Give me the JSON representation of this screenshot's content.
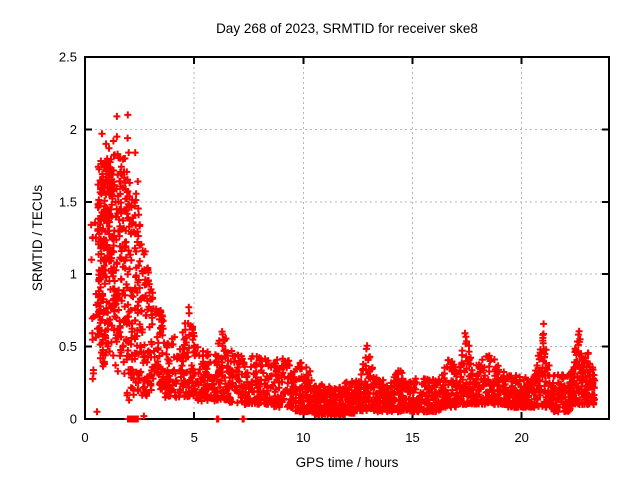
{
  "chart_data": {
    "type": "scatter",
    "title": "Day 268 of 2023, SRMTID for receiver ske8",
    "xlabel": "GPS time / hours",
    "ylabel": "SRMTID / TECUs",
    "xlim": [
      0,
      24
    ],
    "ylim": [
      0,
      2.5
    ],
    "xtick_values": [
      0,
      5,
      10,
      15,
      20
    ],
    "xtick_labels": [
      "0",
      "5",
      "10",
      "15",
      "20"
    ],
    "ytick_values": [
      0,
      0.5,
      1,
      1.5,
      2,
      2.5
    ],
    "ytick_labels": [
      "0",
      "0.5",
      "1",
      "1.5",
      "2",
      "2.5"
    ],
    "grid": {
      "show": true,
      "style": "dashed",
      "color": "#b4b4b4"
    },
    "legend": "none",
    "marker": {
      "shape": "plus",
      "color": "#ff0000",
      "size": 7,
      "stroke_width": 2
    },
    "frame_color": "#000000",
    "background_color": "#ffffff",
    "series_description": "SRMTID amplitude vs GPS time; dense cloud up to ~2.1 TECUs before 2.5 h, decaying to a low band ~0.05-0.3 TECUs with intermittent spikes near 4.8, 6.2, 12.9, 17.4, 21.0 and 22.6 h",
    "cloud_segment_format": [
      "x_start",
      "x_end",
      "count",
      "y_min",
      "y_top_start",
      "y_top_mid_or_null",
      "y_top_end",
      "density_bias"
    ],
    "cloud_segments": [
      [
        0.28,
        0.58,
        16,
        0.05,
        1.7,
        null,
        1.3,
        1.0
      ],
      [
        0.58,
        0.95,
        130,
        0.35,
        1.8,
        null,
        1.82,
        0.85
      ],
      [
        0.95,
        1.35,
        120,
        0.4,
        1.85,
        null,
        1.85,
        0.78
      ],
      [
        1.35,
        1.9,
        110,
        0.3,
        1.85,
        null,
        1.8,
        0.82
      ],
      [
        1.9,
        2.45,
        110,
        0.12,
        1.8,
        null,
        1.5,
        1.0
      ],
      [
        2.45,
        3.0,
        85,
        0.15,
        1.45,
        null,
        0.95,
        1.25
      ],
      [
        3.0,
        3.6,
        75,
        0.2,
        0.95,
        null,
        0.7,
        1.2
      ],
      [
        3.6,
        4.4,
        65,
        0.15,
        0.6,
        null,
        0.55,
        1.3
      ],
      [
        4.4,
        5.1,
        75,
        0.15,
        0.55,
        0.78,
        0.5,
        1.3
      ],
      [
        5.1,
        6.0,
        80,
        0.12,
        0.5,
        null,
        0.45,
        1.5
      ],
      [
        6.0,
        6.6,
        70,
        0.13,
        0.45,
        0.74,
        0.4,
        1.4
      ],
      [
        6.6,
        7.6,
        85,
        0.1,
        0.5,
        null,
        0.42,
        1.5
      ],
      [
        7.6,
        8.6,
        95,
        0.1,
        0.46,
        null,
        0.42,
        1.4
      ],
      [
        8.6,
        9.6,
        95,
        0.08,
        0.4,
        0.45,
        0.35,
        1.5
      ],
      [
        9.6,
        10.5,
        100,
        0.05,
        0.45,
        null,
        0.3,
        1.7
      ],
      [
        10.5,
        11.9,
        180,
        0.03,
        0.25,
        null,
        0.22,
        1.8
      ],
      [
        11.9,
        12.6,
        95,
        0.04,
        0.3,
        null,
        0.26,
        1.7
      ],
      [
        12.6,
        13.25,
        80,
        0.05,
        0.28,
        0.56,
        0.3,
        1.2
      ],
      [
        13.25,
        14.05,
        90,
        0.05,
        0.3,
        null,
        0.26,
        1.6
      ],
      [
        14.05,
        14.75,
        80,
        0.05,
        0.26,
        0.36,
        0.24,
        1.5
      ],
      [
        14.75,
        16.3,
        150,
        0.05,
        0.28,
        null,
        0.28,
        1.7
      ],
      [
        16.3,
        17.1,
        90,
        0.08,
        0.3,
        0.44,
        0.32,
        1.4
      ],
      [
        17.1,
        17.8,
        85,
        0.1,
        0.32,
        0.64,
        0.3,
        1.3
      ],
      [
        17.8,
        19.3,
        140,
        0.1,
        0.36,
        0.46,
        0.3,
        1.45
      ],
      [
        19.3,
        20.6,
        160,
        0.08,
        0.32,
        null,
        0.3,
        1.7
      ],
      [
        20.6,
        21.4,
        90,
        0.08,
        0.3,
        0.67,
        0.28,
        1.25
      ],
      [
        21.4,
        22.25,
        100,
        0.05,
        0.3,
        null,
        0.32,
        1.5
      ],
      [
        22.25,
        23.0,
        105,
        0.1,
        0.35,
        0.62,
        0.4,
        1.3
      ],
      [
        23.0,
        23.35,
        55,
        0.1,
        0.5,
        null,
        0.3,
        1.3
      ]
    ],
    "outlier_points": [
      [
        1.46,
        2.09
      ],
      [
        1.96,
        2.1
      ],
      [
        0.78,
        1.97
      ],
      [
        1.46,
        1.95
      ],
      [
        1.95,
        1.94
      ],
      [
        0.96,
        1.9
      ],
      [
        1.1,
        1.87
      ],
      [
        1.3,
        1.92
      ],
      [
        2.0,
        1.84
      ],
      [
        2.3,
        1.84
      ],
      [
        2.42,
        1.64
      ],
      [
        0.35,
        1.25
      ],
      [
        0.3,
        1.1
      ],
      [
        0.55,
        0.05
      ]
    ],
    "zero_points": [
      [
        1.97,
        0
      ],
      [
        2.0,
        0
      ],
      [
        2.03,
        0
      ],
      [
        2.06,
        0
      ],
      [
        2.09,
        0
      ],
      [
        2.12,
        0
      ],
      [
        2.16,
        0
      ],
      [
        2.2,
        0
      ],
      [
        2.24,
        0
      ],
      [
        2.28,
        0
      ],
      [
        2.33,
        0
      ],
      [
        2.38,
        0
      ],
      [
        2.42,
        0
      ],
      [
        2.7,
        0.02
      ],
      [
        6.05,
        0
      ],
      [
        6.1,
        0
      ],
      [
        7.22,
        0
      ],
      [
        7.27,
        0
      ]
    ]
  }
}
